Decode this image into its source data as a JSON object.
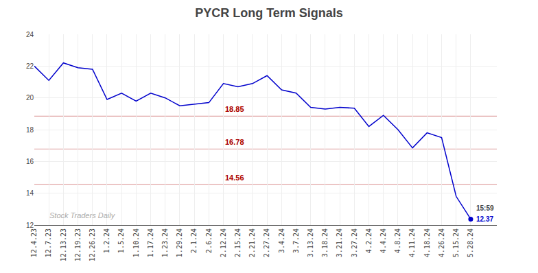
{
  "chart_data": {
    "type": "line",
    "title": "PYCR Long Term Signals",
    "categories": [
      "12.4.23",
      "12.7.23",
      "12.13.23",
      "12.19.23",
      "12.26.23",
      "1.2.24",
      "1.5.24",
      "1.10.24",
      "1.17.24",
      "1.23.24",
      "1.29.24",
      "2.1.24",
      "2.6.24",
      "2.12.24",
      "2.15.24",
      "2.21.24",
      "2.27.24",
      "3.4.24",
      "3.7.24",
      "3.13.24",
      "3.18.24",
      "3.21.24",
      "3.27.24",
      "4.2.24",
      "4.4.24",
      "4.8.24",
      "4.11.24",
      "4.18.24",
      "4.26.24",
      "5.15.24",
      "5.28.24"
    ],
    "values": [
      22.0,
      21.1,
      22.2,
      21.9,
      21.8,
      19.9,
      20.3,
      19.8,
      20.3,
      20.0,
      19.5,
      19.6,
      19.7,
      20.9,
      20.7,
      20.9,
      21.4,
      20.5,
      20.3,
      19.4,
      19.3,
      19.4,
      19.35,
      18.2,
      18.9,
      18.0,
      16.85,
      17.8,
      17.5,
      13.8,
      12.37
    ],
    "color": "#0000cc",
    "hlines": {
      "values": [
        18.85,
        16.78,
        14.56
      ],
      "color": "#aa0000"
    },
    "annotations": [
      {
        "text": "15:59"
      },
      {
        "text": "12.37",
        "color": "#0000cc"
      },
      {
        "text": "Stock Traders Daily",
        "color": "#aaaaaa"
      }
    ],
    "ylim": [
      12,
      24
    ],
    "yticks": [
      12,
      14,
      16,
      18,
      20,
      22,
      24
    ],
    "grid": true
  }
}
